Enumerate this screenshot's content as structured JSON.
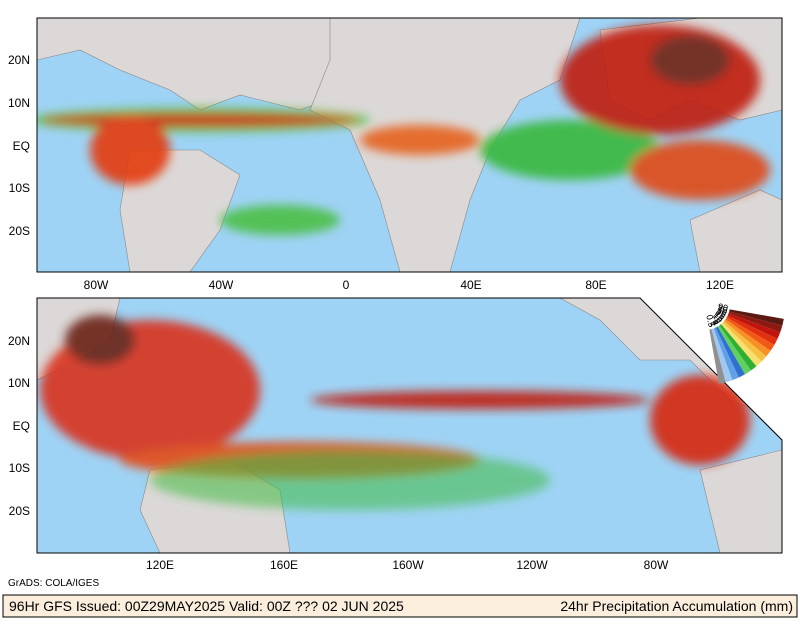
{
  "top_panel": {
    "lat_labels": [
      "20N",
      "10N",
      "EQ",
      "10S",
      "20S"
    ],
    "lon_labels": [
      "80W",
      "40W",
      "0",
      "40E",
      "80E",
      "120E"
    ]
  },
  "bottom_panel": {
    "lat_labels": [
      "20N",
      "10N",
      "EQ",
      "10S",
      "20S"
    ],
    "lon_labels": [
      "120E",
      "160E",
      "160W",
      "120W",
      "80W"
    ]
  },
  "legend": {
    "labels": [
      "90",
      "70",
      "50",
      "35",
      "25",
      "15",
      "10",
      "8",
      "4",
      "1",
      "0.5"
    ]
  },
  "credit": "GrADS: COLA/IGES",
  "footer": {
    "left": "96Hr GFS Issued: 00Z29MAY2025 Valid: 00Z ??? 02 JUN 2025",
    "right": "24hr Precipitation Accumulation (mm)"
  }
}
